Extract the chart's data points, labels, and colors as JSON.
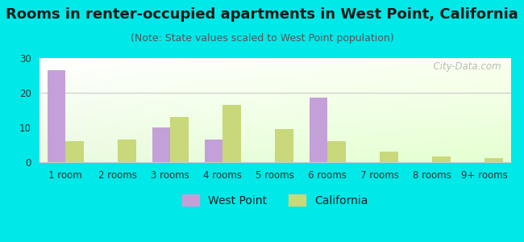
{
  "title": "Rooms in renter-occupied apartments in West Point, California",
  "subtitle": "(Note: State values scaled to West Point population)",
  "categories": [
    "1 room",
    "2 rooms",
    "3 rooms",
    "4 rooms",
    "5 rooms",
    "6 rooms",
    "7 rooms",
    "8 rooms",
    "9+ rooms"
  ],
  "west_point": [
    26.5,
    0,
    10,
    6.5,
    0,
    18.5,
    0,
    0,
    0
  ],
  "california": [
    6,
    6.5,
    13,
    16.5,
    9.5,
    6,
    3,
    1.7,
    1.2
  ],
  "west_point_color": "#c4a0d8",
  "california_color": "#c8d87a",
  "bg_outer": "#00e8e8",
  "ylim": [
    0,
    30
  ],
  "yticks": [
    0,
    10,
    20,
    30
  ],
  "bar_width": 0.35,
  "title_fontsize": 13,
  "subtitle_fontsize": 9,
  "tick_fontsize": 8.5,
  "legend_fontsize": 10,
  "watermark": "  City-Data.com"
}
